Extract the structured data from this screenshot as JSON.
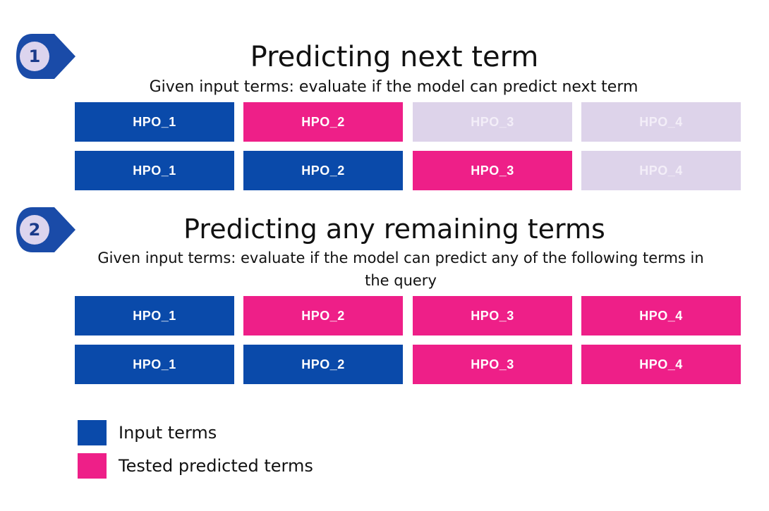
{
  "colors": {
    "input": "#0a4aaa",
    "tested": "#ee1f88",
    "unused": "#ddd3ea",
    "badge_fill": "#1a4ba8",
    "badge_inner": "#dcd4ee"
  },
  "sections": [
    {
      "number": "1",
      "title": "Predicting next term",
      "subtitle": "Given input terms: evaluate if the model can predict next term",
      "rows": [
        [
          {
            "label": "HPO_1",
            "kind": "input"
          },
          {
            "label": "HPO_2",
            "kind": "tested"
          },
          {
            "label": "HPO_3",
            "kind": "unused"
          },
          {
            "label": "HPO_4",
            "kind": "unused"
          }
        ],
        [
          {
            "label": "HPO_1",
            "kind": "input"
          },
          {
            "label": "HPO_2",
            "kind": "input"
          },
          {
            "label": "HPO_3",
            "kind": "tested"
          },
          {
            "label": "HPO_4",
            "kind": "unused"
          }
        ]
      ]
    },
    {
      "number": "2",
      "title": "Predicting any remaining terms",
      "subtitle_line1": "Given input terms: evaluate if the model can predict any of the following terms in",
      "subtitle_line2": "the query",
      "rows": [
        [
          {
            "label": "HPO_1",
            "kind": "input"
          },
          {
            "label": "HPO_2",
            "kind": "tested"
          },
          {
            "label": "HPO_3",
            "kind": "tested"
          },
          {
            "label": "HPO_4",
            "kind": "tested"
          }
        ],
        [
          {
            "label": "HPO_1",
            "kind": "input"
          },
          {
            "label": "HPO_2",
            "kind": "input"
          },
          {
            "label": "HPO_3",
            "kind": "tested"
          },
          {
            "label": "HPO_4",
            "kind": "tested"
          }
        ]
      ]
    }
  ],
  "legend": [
    {
      "label": "Input terms",
      "kind": "input"
    },
    {
      "label": "Tested predicted terms",
      "kind": "tested"
    }
  ]
}
